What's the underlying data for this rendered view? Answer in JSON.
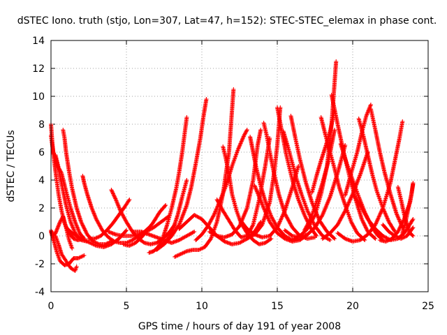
{
  "chart_data": {
    "type": "scatter",
    "title": "dSTEC Iono. truth (stjo, Lon=307, Lat=47, h=152): STEC-STEC_elemax in phase cont.",
    "xlabel": "GPS time / hours of day 191 of year 2008",
    "ylabel": "dSTEC  / TECUs",
    "xlim": [
      0,
      25
    ],
    "ylim": [
      -4,
      14
    ],
    "xticks": [
      0,
      5,
      10,
      15,
      20,
      25
    ],
    "yticks": [
      -4,
      -2,
      0,
      2,
      4,
      6,
      8,
      10,
      12,
      14
    ],
    "grid": true,
    "legend": "none",
    "marker": "+",
    "color": "#ff0000",
    "series": [
      {
        "x": [
          0.0,
          0.1,
          0.2,
          0.35,
          0.5,
          0.7,
          0.9,
          1.2,
          1.5,
          1.8,
          2.1
        ],
        "y": [
          8.0,
          6.5,
          5.5,
          4.2,
          3.0,
          1.8,
          0.9,
          0.2,
          -0.2,
          -0.3,
          -0.2
        ]
      },
      {
        "x": [
          0.0,
          0.15,
          0.3,
          0.5,
          0.75,
          1.0,
          1.3,
          1.6,
          2.0,
          2.4
        ],
        "y": [
          7.2,
          6.0,
          5.6,
          4.8,
          3.5,
          2.2,
          1.0,
          0.2,
          -0.3,
          -0.4
        ]
      },
      {
        "x": [
          0.3,
          0.5,
          0.7,
          1.0,
          1.3,
          1.6,
          1.9,
          2.2
        ],
        "y": [
          5.8,
          4.9,
          4.5,
          3.2,
          2.0,
          1.0,
          0.2,
          -0.2
        ]
      },
      {
        "x": [
          0.8,
          0.9,
          1.0,
          1.2,
          1.4,
          1.7,
          2.0,
          2.4,
          2.8,
          3.2,
          3.6,
          4.0
        ],
        "y": [
          7.6,
          7.0,
          6.0,
          4.6,
          3.4,
          2.0,
          1.0,
          0.1,
          -0.4,
          -0.6,
          -0.6,
          -0.4
        ]
      },
      {
        "x": [
          2.1,
          2.2,
          2.4,
          2.7,
          3.0,
          3.4,
          3.8,
          4.2,
          4.6,
          5.0,
          5.4,
          5.8,
          6.2,
          6.6
        ],
        "y": [
          4.3,
          3.8,
          3.0,
          2.0,
          1.2,
          0.4,
          -0.1,
          -0.4,
          -0.5,
          -0.5,
          -0.3,
          0.0,
          0.3,
          0.7
        ]
      },
      {
        "x": [
          0.0,
          0.2,
          0.4,
          0.6,
          0.9,
          1.2,
          1.5,
          1.8,
          2.2
        ],
        "y": [
          0.3,
          -0.4,
          -1.2,
          -1.8,
          -2.1,
          -2.0,
          -1.6,
          -1.6,
          -1.4
        ]
      },
      {
        "x": [
          0.3,
          0.5,
          0.7,
          1.0,
          1.3,
          1.6,
          1.7
        ],
        "y": [
          0.0,
          -0.6,
          -1.3,
          -1.8,
          -2.3,
          -2.5,
          -2.2
        ]
      },
      {
        "x": [
          0.0,
          0.15,
          0.3,
          0.45,
          0.6,
          0.8,
          1.0,
          1.2,
          1.4
        ],
        "y": [
          0.4,
          0.0,
          0.2,
          0.6,
          1.0,
          1.4,
          0.6,
          -0.3,
          -0.9
        ]
      },
      {
        "x": [
          1.0,
          1.4,
          1.8,
          2.2,
          2.6,
          3.0,
          3.5,
          4.0,
          4.5,
          5.0
        ],
        "y": [
          0.6,
          0.2,
          -0.1,
          -0.3,
          -0.5,
          -0.7,
          -0.8,
          -0.6,
          -0.2,
          0.4
        ]
      },
      {
        "x": [
          4.0,
          4.3,
          4.6,
          5.0,
          5.4,
          5.8,
          6.2,
          6.6,
          7.0,
          7.4,
          7.8,
          8.2
        ],
        "y": [
          3.3,
          2.6,
          1.8,
          1.0,
          0.3,
          -0.2,
          -0.5,
          -0.6,
          -0.5,
          -0.2,
          0.2,
          0.8
        ]
      },
      {
        "x": [
          2.5,
          2.9,
          3.3,
          3.7,
          4.1,
          4.5,
          4.9,
          5.2
        ],
        "y": [
          -0.2,
          -0.2,
          0.0,
          0.4,
          0.9,
          1.5,
          2.1,
          2.6
        ]
      },
      {
        "x": [
          4.8,
          5.2,
          5.6,
          6.0,
          6.4,
          6.8,
          7.2,
          7.6
        ],
        "y": [
          -0.6,
          -0.7,
          -0.5,
          -0.1,
          0.4,
          1.0,
          1.7,
          2.2
        ]
      },
      {
        "x": [
          3.8,
          4.3,
          4.8,
          5.3,
          5.8,
          6.3,
          6.8,
          7.3,
          7.8
        ],
        "y": [
          0.3,
          0.1,
          0.0,
          0.0,
          0.1,
          0.3,
          0.6,
          1.0,
          1.4
        ]
      },
      {
        "x": [
          5.5,
          6.0,
          6.5,
          7.0,
          7.5,
          8.0,
          8.5,
          9.0,
          9.5
        ],
        "y": [
          0.3,
          0.3,
          0.1,
          -0.1,
          -0.3,
          -0.5,
          -0.3,
          0.0,
          0.3
        ]
      },
      {
        "x": [
          6.5,
          6.8,
          7.1,
          7.4,
          7.7,
          8.0,
          8.3,
          8.5,
          8.7,
          9.0
        ],
        "y": [
          -1.2,
          -1.1,
          -0.8,
          -0.2,
          0.8,
          2.0,
          3.4,
          4.6,
          6.0,
          8.5
        ]
      },
      {
        "x": [
          7.2,
          7.5,
          7.8,
          8.1,
          8.4,
          8.7,
          9.0
        ],
        "y": [
          -0.7,
          -0.5,
          -0.1,
          0.5,
          1.5,
          2.8,
          4.0
        ]
      },
      {
        "x": [
          7.0,
          7.5,
          8.0,
          8.5,
          9.0,
          9.3,
          9.6,
          9.9,
          10.1,
          10.3
        ],
        "y": [
          -1.0,
          -0.6,
          0.0,
          0.8,
          2.2,
          3.5,
          5.2,
          7.0,
          8.5,
          9.8
        ]
      },
      {
        "x": [
          8.2,
          8.6,
          9.0,
          9.4,
          9.8,
          10.2,
          10.6,
          11.0,
          11.4,
          11.8,
          12.1
        ],
        "y": [
          -1.5,
          -1.3,
          -1.1,
          -1.0,
          -1.0,
          -0.8,
          -0.2,
          1.0,
          3.0,
          6.0,
          10.5
        ]
      },
      {
        "x": [
          8.5,
          9.0,
          9.5,
          10.0,
          10.5,
          11.0,
          11.5,
          12.0,
          12.5,
          13.0,
          13.5,
          13.9
        ],
        "y": [
          0.5,
          1.0,
          1.5,
          1.2,
          0.6,
          0.0,
          -0.4,
          -0.6,
          -0.5,
          -0.2,
          0.3,
          1.0
        ]
      },
      {
        "x": [
          9.6,
          10.0,
          10.4,
          10.8,
          11.2,
          11.6,
          12.0,
          12.4,
          12.8,
          13.0
        ],
        "y": [
          -0.3,
          0.1,
          0.7,
          1.5,
          2.5,
          3.6,
          5.0,
          6.2,
          7.2,
          7.6
        ]
      },
      {
        "x": [
          11.4,
          11.6,
          11.8,
          12.0,
          12.3,
          12.6,
          13.0,
          13.4,
          13.8,
          14.2,
          14.6
        ],
        "y": [
          6.4,
          5.5,
          4.4,
          3.0,
          1.8,
          0.9,
          0.2,
          -0.3,
          -0.6,
          -0.5,
          -0.2
        ]
      },
      {
        "x": [
          10.5,
          11.0,
          11.5,
          12.0,
          12.5,
          13.0,
          13.4,
          13.7,
          13.9
        ],
        "y": [
          0.3,
          0.0,
          -0.1,
          0.1,
          0.7,
          2.0,
          4.0,
          6.5,
          7.6
        ]
      },
      {
        "x": [
          11.0,
          11.4,
          11.8,
          12.2,
          12.6,
          13.0,
          13.4,
          13.8,
          14.2,
          14.5
        ],
        "y": [
          2.6,
          1.8,
          1.1,
          0.4,
          -0.1,
          0.0,
          0.8,
          2.6,
          5.0,
          7.0
        ]
      },
      {
        "x": [
          13.2,
          13.4,
          13.6,
          13.9,
          14.2,
          14.6,
          15.0,
          15.5,
          16.0,
          16.5
        ],
        "y": [
          7.1,
          6.0,
          4.9,
          3.6,
          2.5,
          1.4,
          0.6,
          0.0,
          -0.3,
          -0.2
        ]
      },
      {
        "x": [
          13.5,
          13.8,
          14.1,
          14.5,
          15.0,
          15.5,
          16.0,
          16.5,
          17.0
        ],
        "y": [
          3.6,
          2.8,
          2.0,
          1.0,
          0.2,
          -0.2,
          -0.4,
          -0.3,
          0.1
        ]
      },
      {
        "x": [
          14.1,
          14.3,
          14.5,
          14.8,
          15.1,
          15.5,
          16.0,
          16.5,
          17.0,
          17.5
        ],
        "y": [
          8.1,
          7.2,
          6.0,
          4.4,
          3.0,
          1.6,
          0.6,
          0.0,
          -0.2,
          -0.1
        ]
      },
      {
        "x": [
          12.5,
          13.0,
          13.5,
          14.0,
          14.5,
          15.0,
          15.5,
          16.0,
          16.4
        ],
        "y": [
          1.2,
          0.5,
          0.1,
          -0.1,
          0.0,
          0.6,
          1.8,
          3.5,
          5.0
        ]
      },
      {
        "x": [
          13.0,
          13.5,
          14.0,
          14.5,
          14.8,
          15.0,
          15.2
        ],
        "y": [
          -0.2,
          0.1,
          0.8,
          2.4,
          4.6,
          6.5,
          9.2
        ]
      },
      {
        "x": [
          15.0,
          15.3,
          15.6,
          16.0,
          16.4,
          16.8,
          17.2,
          17.6
        ],
        "y": [
          9.2,
          7.5,
          5.8,
          4.0,
          2.6,
          1.5,
          0.6,
          0.0
        ]
      },
      {
        "x": [
          15.4,
          15.7,
          16.0,
          16.3,
          16.6,
          17.0,
          17.5,
          18.0,
          18.5
        ],
        "y": [
          7.5,
          6.4,
          5.2,
          4.0,
          3.0,
          1.8,
          0.7,
          0.0,
          -0.3
        ]
      },
      {
        "x": [
          15.9,
          16.2,
          16.5,
          16.9,
          17.3,
          17.8,
          18.3,
          18.8
        ],
        "y": [
          8.6,
          7.0,
          5.5,
          3.8,
          2.4,
          1.1,
          0.3,
          -0.2
        ]
      },
      {
        "x": [
          15.5,
          16.0,
          16.5,
          17.0,
          17.5,
          18.0,
          18.5,
          19.0,
          19.5
        ],
        "y": [
          0.4,
          0.0,
          -0.1,
          0.1,
          0.6,
          1.5,
          2.8,
          4.5,
          6.5
        ]
      },
      {
        "x": [
          16.0,
          16.5,
          17.0,
          17.5,
          17.9,
          18.3,
          18.6,
          18.9
        ],
        "y": [
          -0.3,
          0.0,
          0.5,
          1.5,
          3.0,
          5.0,
          8.0,
          12.5
        ]
      },
      {
        "x": [
          17.3,
          17.6,
          17.9,
          18.2,
          18.5,
          18.8
        ],
        "y": [
          3.1,
          4.3,
          5.4,
          6.4,
          7.5,
          9.0
        ]
      },
      {
        "x": [
          16.8,
          17.2,
          17.6,
          18.0,
          18.4,
          18.8
        ],
        "y": [
          0.4,
          1.2,
          2.4,
          3.8,
          5.4,
          7.6
        ]
      },
      {
        "x": [
          17.9,
          18.2,
          18.5,
          18.8,
          19.1,
          19.5,
          19.9,
          20.3,
          20.8
        ],
        "y": [
          8.5,
          7.2,
          6.0,
          4.8,
          3.5,
          2.2,
          1.0,
          0.2,
          -0.3
        ]
      },
      {
        "x": [
          18.6,
          19.0,
          19.4,
          19.8,
          20.2,
          20.6,
          21.0,
          21.5
        ],
        "y": [
          10.1,
          8.0,
          6.0,
          4.2,
          2.6,
          1.2,
          0.3,
          -0.2
        ]
      },
      {
        "x": [
          19.2,
          19.6,
          20.0,
          20.4,
          20.8,
          21.2,
          21.6,
          22.0
        ],
        "y": [
          6.6,
          5.2,
          4.0,
          2.8,
          1.7,
          0.8,
          0.1,
          -0.3
        ]
      },
      {
        "x": [
          19.5,
          19.9,
          20.3,
          20.6,
          20.9,
          21.2
        ],
        "y": [
          2.9,
          4.5,
          6.0,
          7.4,
          8.6,
          9.4
        ]
      },
      {
        "x": [
          20.4,
          20.7,
          21.0,
          21.3,
          21.6,
          22.0,
          22.4,
          22.8
        ],
        "y": [
          8.4,
          7.2,
          5.8,
          4.4,
          3.2,
          2.0,
          1.0,
          0.3
        ]
      },
      {
        "x": [
          21.2,
          21.5,
          21.8,
          22.1,
          22.5,
          22.9,
          23.3
        ],
        "y": [
          9.1,
          7.6,
          6.0,
          4.6,
          3.0,
          1.6,
          0.6
        ]
      },
      {
        "x": [
          19.0,
          19.5,
          20.0,
          20.5,
          21.0,
          21.5,
          22.0,
          22.5,
          22.8,
          23.1,
          23.3
        ],
        "y": [
          0.2,
          -0.2,
          -0.4,
          -0.3,
          0.1,
          0.8,
          2.0,
          3.8,
          5.4,
          7.0,
          8.2
        ]
      },
      {
        "x": [
          18.0,
          18.5,
          19.0,
          19.5,
          20.0,
          20.5,
          21.0
        ],
        "y": [
          -0.2,
          0.2,
          0.8,
          1.8,
          3.0,
          4.4,
          6.0
        ]
      },
      {
        "x": [
          20.0,
          20.5,
          21.0,
          21.5,
          22.0,
          22.5,
          23.0,
          23.5,
          24.0
        ],
        "y": [
          3.0,
          2.2,
          1.2,
          0.5,
          0.0,
          -0.3,
          -0.2,
          0.3,
          1.2
        ]
      },
      {
        "x": [
          21.8,
          22.2,
          22.6,
          23.0,
          23.4,
          23.8,
          24.0
        ],
        "y": [
          -0.3,
          -0.4,
          -0.2,
          0.3,
          1.2,
          2.4,
          3.7
        ]
      },
      {
        "x": [
          22.0,
          22.4,
          22.8,
          23.2,
          23.6,
          24.0
        ],
        "y": [
          0.8,
          0.3,
          0.0,
          -0.2,
          0.0,
          0.6
        ]
      },
      {
        "x": [
          23.0,
          23.2,
          23.4,
          23.6,
          23.8,
          24.0
        ],
        "y": [
          3.5,
          2.6,
          1.6,
          0.8,
          0.2,
          0.0
        ]
      },
      {
        "x": [
          23.3,
          23.5,
          23.7,
          23.9,
          24.0
        ],
        "y": [
          0.2,
          1.0,
          2.0,
          3.0,
          3.8
        ]
      }
    ]
  }
}
